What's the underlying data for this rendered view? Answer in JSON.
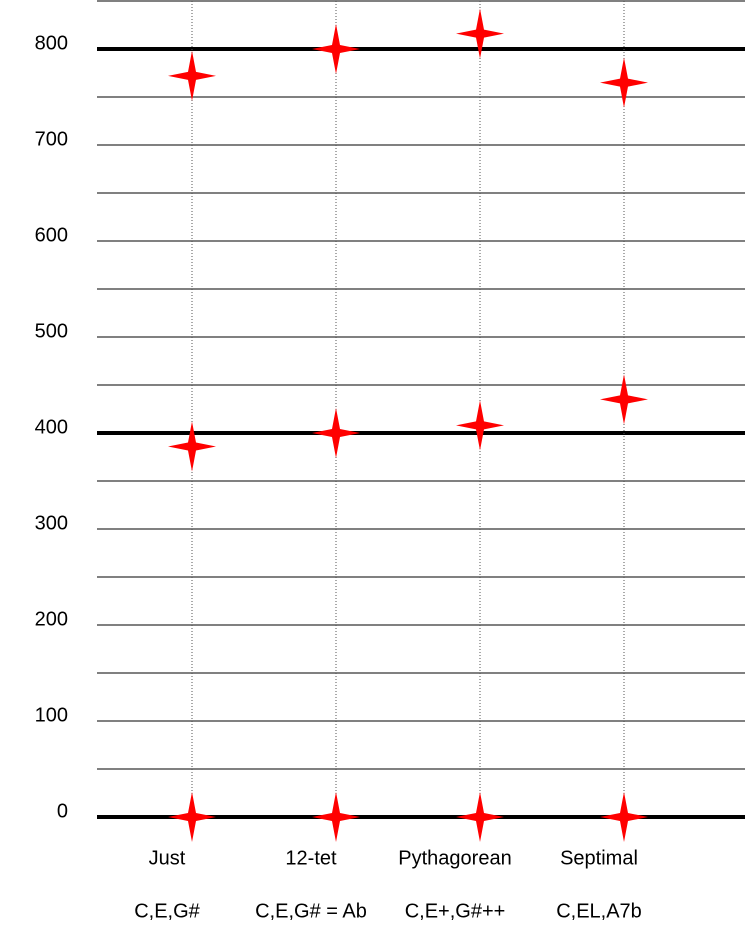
{
  "chart_data": {
    "type": "star-scatter",
    "categories": [
      "Just",
      "12-tet",
      "Pythagorean",
      "Septimal"
    ],
    "sublabels": [
      "C,E,G#",
      "C,E,G# = Ab",
      "C,E+,G#++",
      "C,EL,A7b"
    ],
    "series": [
      {
        "color": "#ff0000",
        "values": [
          0,
          0,
          0,
          0
        ]
      },
      {
        "color": "#ff0000",
        "values": [
          386,
          400,
          408,
          435
        ]
      },
      {
        "color": "#ff0000",
        "values": [
          772,
          800,
          816,
          765
        ]
      }
    ],
    "ylim": [
      0,
      850
    ],
    "yticks": [
      0,
      100,
      200,
      300,
      400,
      500,
      600,
      700,
      800
    ],
    "gridlines": [
      0,
      50,
      100,
      150,
      200,
      250,
      300,
      350,
      400,
      450,
      500,
      550,
      600,
      650,
      700,
      750,
      800,
      850
    ],
    "major_gridlines": [
      0,
      400,
      800
    ],
    "grid": true
  }
}
